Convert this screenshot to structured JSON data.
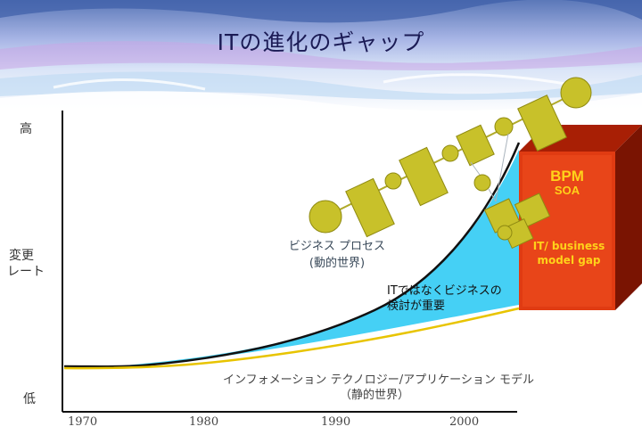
{
  "title": "ITの進化のギャップ",
  "y_axis": {
    "high": "高",
    "rate_line1": "変更",
    "rate_line2": "レート",
    "low": "低"
  },
  "x_axis": {
    "years": [
      "1970",
      "1980",
      "1990",
      "2000"
    ]
  },
  "labels": {
    "business_process_line1": "ビジネス プロセス",
    "business_process_line2": "(動的世界)",
    "focus_line1": "ITではなくビジネスの",
    "focus_line2": "検討が重要",
    "it_model_line1": "インフォメーション テクノロジー/アプリケーション  モデル",
    "it_model_line2": "（静的世界）"
  },
  "box": {
    "bpm": "BPM",
    "soa": "SOA",
    "gap_line1": "IT/ business",
    "gap_line2": "model gap"
  },
  "colors": {
    "fill_gap": "#45d0f5",
    "box_red": "#e03b12",
    "box_text": "#ffd21a",
    "shape_olive": "#c8c12a"
  }
}
